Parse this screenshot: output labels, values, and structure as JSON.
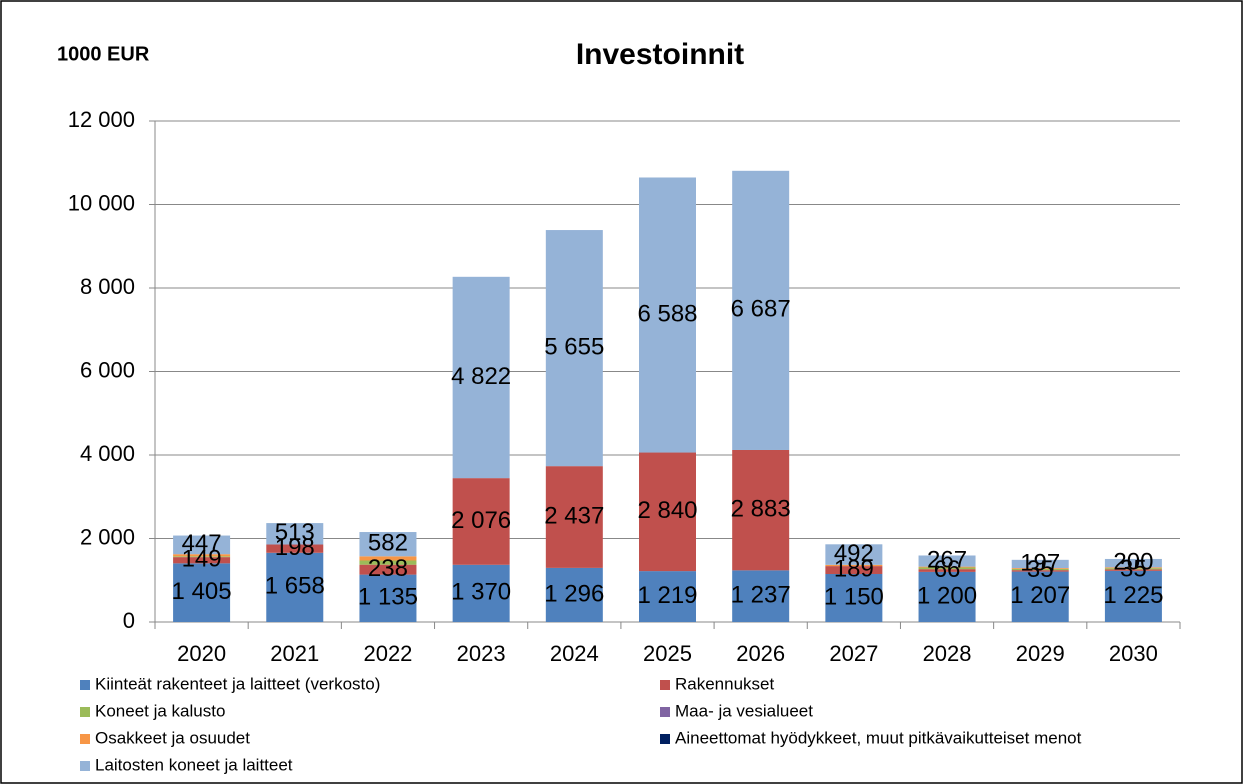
{
  "chart_data": {
    "type": "stacked_bar",
    "title": "Investoinnit",
    "subtitle": "1000 EUR",
    "categories": [
      "2020",
      "2021",
      "2022",
      "2023",
      "2024",
      "2025",
      "2026",
      "2027",
      "2028",
      "2029",
      "2030"
    ],
    "series": [
      {
        "name": "Kiinteät rakenteet ja laitteet (verkosto)",
        "color": "#4f81bd",
        "values": [
          1405,
          1658,
          1135,
          1370,
          1296,
          1219,
          1237,
          1150,
          1200,
          1207,
          1225
        ],
        "value_labels": [
          "1 405",
          "1 658",
          "1 135",
          "1 370",
          "1 296",
          "1 219",
          "1 237",
          "1 150",
          "1 200",
          "1 207",
          "1 225"
        ]
      },
      {
        "name": "Rakennukset",
        "color": "#c0504d",
        "values": [
          149,
          198,
          238,
          2076,
          2437,
          2840,
          2883,
          189,
          66,
          35,
          35
        ],
        "value_labels": [
          "149",
          "198",
          "238",
          "2 076",
          "2 437",
          "2 840",
          "2 883",
          "189",
          "66",
          "35",
          "35"
        ]
      },
      {
        "name": "Koneet ja kalusto",
        "color": "#9bbb59",
        "values": [
          20,
          0,
          100,
          0,
          0,
          0,
          0,
          0,
          40,
          30,
          30
        ]
      },
      {
        "name": "Maa- ja vesialueet",
        "color": "#8064a2",
        "values": [
          0,
          0,
          0,
          0,
          0,
          0,
          0,
          0,
          0,
          0,
          0
        ]
      },
      {
        "name": "Osakkeet ja osuudet",
        "color": "#f79646",
        "values": [
          50,
          0,
          100,
          0,
          0,
          0,
          0,
          30,
          20,
          20,
          20
        ]
      },
      {
        "name": "Aineettomat hyödykkeet, muut pitkävaikutteiset menot",
        "color": "#002060",
        "values": [
          0,
          0,
          0,
          0,
          0,
          0,
          0,
          0,
          0,
          0,
          0
        ]
      },
      {
        "name": "Laitosten koneet ja laitteet",
        "color": "#95b3d7",
        "values": [
          447,
          513,
          582,
          4822,
          5655,
          6588,
          6687,
          492,
          267,
          197,
          200
        ],
        "value_labels": [
          "447",
          "513",
          "582",
          "4 822",
          "5 655",
          "6 588",
          "6 687",
          "492",
          "267",
          "197",
          "200"
        ]
      }
    ],
    "ylim": [
      0,
      12000
    ],
    "yticks": [
      0,
      {
        "value": 2000,
        "label": "2 000"
      },
      {
        "value": 4000,
        "label": "4 000"
      },
      {
        "value": 6000,
        "label": "6 000"
      },
      {
        "value": 8000,
        "label": "8 000"
      },
      {
        "value": 10000,
        "label": "10 000"
      },
      {
        "value": 12000,
        "label": "12 000"
      }
    ],
    "grid": true
  }
}
